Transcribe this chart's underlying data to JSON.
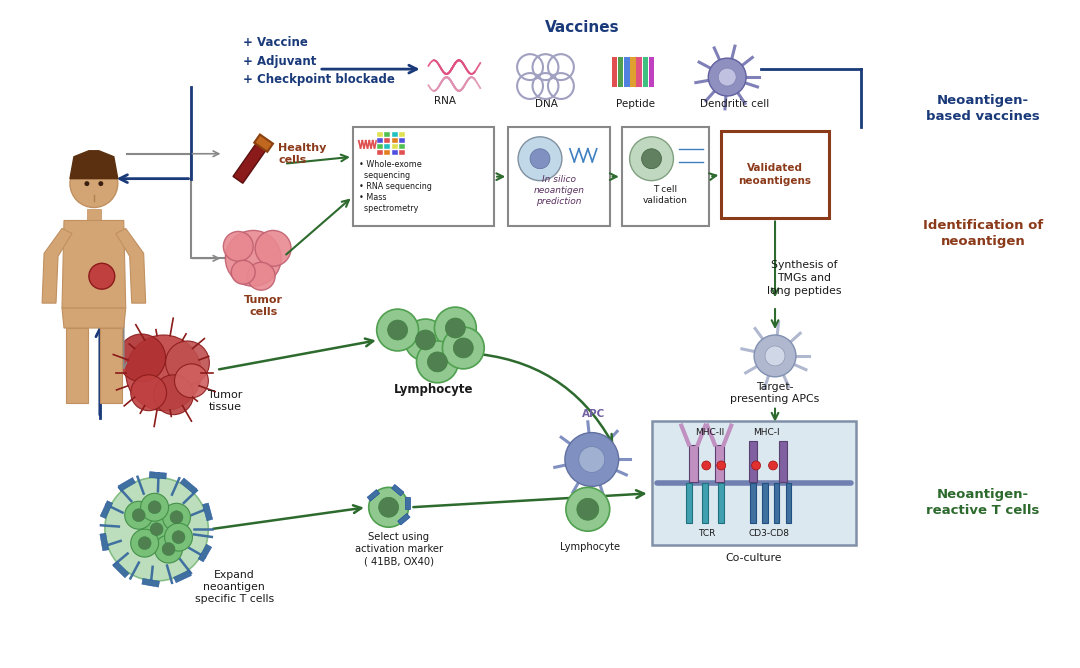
{
  "bg_color": "#ffffff",
  "colors": {
    "dark_blue": "#1a3a7a",
    "blue": "#2060b0",
    "dark_green": "#2d6a2d",
    "green": "#3d8b3d",
    "dark_red": "#8b1a1a",
    "brown_red": "#8b3a1a",
    "gray": "#888888",
    "purple": "#7060a0"
  },
  "labels": {
    "vaccines": "Vaccines",
    "rna": "RNA",
    "dna": "DNA",
    "peptide": "Peptide",
    "dendritic": "Dendritic cell",
    "vaccine_plus": "+ Vaccine\n+ Adjuvant\n+ Checkpoint blockade",
    "healthy_cells": "Healthy\ncells",
    "tumor_cells": "Tumor\ncells",
    "tumor_tissue": "Tumor\ntissue",
    "lymphocyte": "Lymphocyte",
    "in_silico": "In silico\nneoantigen\nprediction",
    "t_cell": "T cell\nvalidation",
    "validated": "Validated\nneoantigens",
    "synthesis": "Synthesis of\nTMGs and\nlong peptides",
    "target_apc": "Target-\npresenting APCs",
    "apc_label": "APC",
    "lymphocyte2": "Lymphocyte",
    "mhc2": "MHC-II",
    "mhc1": "MHC-I",
    "tcr": "TCR",
    "cd3cd8": "CD3-CD8",
    "coculture": "Co-culture",
    "select": "Select using\nactivation marker\n( 41BB, OX40)",
    "expand": "Expand\nneoantigen\nspecific T cells",
    "neoantigen_vaccines": "Neoantigen-\nbased vaccines",
    "identification": "Identification of\nneoantigen",
    "reactive": "Neoantigen-\nreactive T cells"
  }
}
